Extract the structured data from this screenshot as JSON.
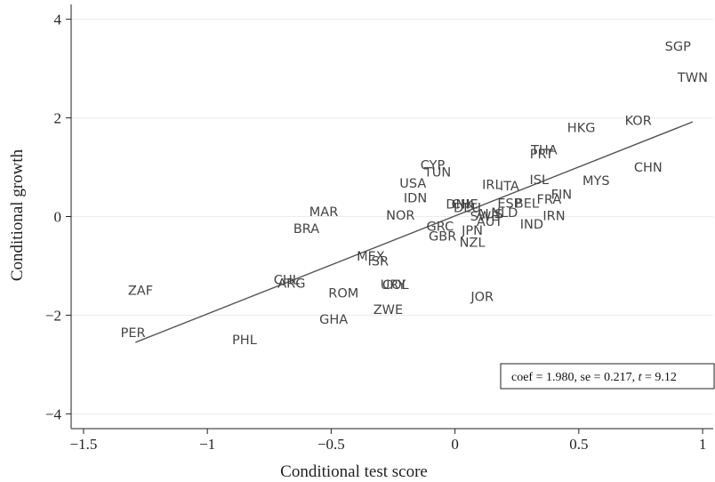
{
  "chart_data": {
    "type": "scatter",
    "title": "",
    "xlabel": "Conditional test score",
    "ylabel": "Conditional growth",
    "xlim": [
      -1.55,
      1.05
    ],
    "ylim": [
      -4.3,
      4.3
    ],
    "xticks": [
      -1.5,
      -1,
      -0.5,
      0,
      0.5,
      1
    ],
    "xtick_labels": [
      "−1.5",
      "−1",
      "−0.5",
      "0",
      "0.5",
      "1"
    ],
    "yticks": [
      -4,
      -2,
      0,
      2,
      4
    ],
    "ytick_labels": [
      "−4",
      "−2",
      "0",
      "2",
      "4"
    ],
    "grid": "horizontal",
    "marker": "country code labels",
    "points": [
      {
        "label": "SGP",
        "x": 0.9,
        "y": 3.45
      },
      {
        "label": "TWN",
        "x": 0.96,
        "y": 2.82
      },
      {
        "label": "KOR",
        "x": 0.74,
        "y": 1.95
      },
      {
        "label": "HKG",
        "x": 0.51,
        "y": 1.8
      },
      {
        "label": "CHN",
        "x": 0.78,
        "y": 1.0
      },
      {
        "label": "THA",
        "x": 0.36,
        "y": 1.35
      },
      {
        "label": "PRT",
        "x": 0.35,
        "y": 1.27
      },
      {
        "label": "MYS",
        "x": 0.57,
        "y": 0.73
      },
      {
        "label": "ISL",
        "x": 0.34,
        "y": 0.75
      },
      {
        "label": "IRL",
        "x": 0.15,
        "y": 0.65
      },
      {
        "label": "ITA",
        "x": 0.22,
        "y": 0.62
      },
      {
        "label": "FIN",
        "x": 0.43,
        "y": 0.45
      },
      {
        "label": "FRA",
        "x": 0.38,
        "y": 0.35
      },
      {
        "label": "ESP",
        "x": 0.22,
        "y": 0.27
      },
      {
        "label": "BEL",
        "x": 0.29,
        "y": 0.27
      },
      {
        "label": "CYP",
        "x": -0.09,
        "y": 1.05
      },
      {
        "label": "TUN",
        "x": -0.07,
        "y": 0.9
      },
      {
        "label": "USA",
        "x": -0.17,
        "y": 0.68
      },
      {
        "label": "IDN",
        "x": -0.16,
        "y": 0.38
      },
      {
        "label": "DNK",
        "x": 0.02,
        "y": 0.25
      },
      {
        "label": "CHE",
        "x": 0.04,
        "y": 0.25
      },
      {
        "label": "DEU",
        "x": 0.05,
        "y": 0.18
      },
      {
        "label": "NLD",
        "x": 0.2,
        "y": 0.08
      },
      {
        "label": "AUS",
        "x": 0.14,
        "y": 0.05
      },
      {
        "label": "SWE",
        "x": 0.12,
        "y": 0.01
      },
      {
        "label": "IRN",
        "x": 0.4,
        "y": 0.02
      },
      {
        "label": "AUT",
        "x": 0.14,
        "y": -0.1
      },
      {
        "label": "IND",
        "x": 0.31,
        "y": -0.15
      },
      {
        "label": "GRC",
        "x": -0.06,
        "y": -0.2
      },
      {
        "label": "JPN",
        "x": 0.07,
        "y": -0.28
      },
      {
        "label": "GBR",
        "x": -0.05,
        "y": -0.4
      },
      {
        "label": "NZL",
        "x": 0.07,
        "y": -0.52
      },
      {
        "label": "MAR",
        "x": -0.53,
        "y": 0.1
      },
      {
        "label": "NOR",
        "x": -0.22,
        "y": 0.03
      },
      {
        "label": "BRA",
        "x": -0.6,
        "y": -0.24
      },
      {
        "label": "MEX",
        "x": -0.34,
        "y": -0.8
      },
      {
        "label": "ISR",
        "x": -0.31,
        "y": -0.9
      },
      {
        "label": "CHL",
        "x": -0.68,
        "y": -1.28
      },
      {
        "label": "ARG",
        "x": -0.66,
        "y": -1.35
      },
      {
        "label": "URY",
        "x": -0.25,
        "y": -1.38
      },
      {
        "label": "COL",
        "x": -0.24,
        "y": -1.38
      },
      {
        "label": "ROM",
        "x": -0.45,
        "y": -1.55
      },
      {
        "label": "JOR",
        "x": 0.11,
        "y": -1.62
      },
      {
        "label": "ZWE",
        "x": -0.27,
        "y": -1.88
      },
      {
        "label": "GHA",
        "x": -0.49,
        "y": -2.08
      },
      {
        "label": "ZAF",
        "x": -1.27,
        "y": -1.5
      },
      {
        "label": "PER",
        "x": -1.3,
        "y": -2.35
      },
      {
        "label": "PHL",
        "x": -0.85,
        "y": -2.5
      }
    ],
    "fit_line": {
      "x": [
        -1.29,
        0.96
      ],
      "y": [
        -2.55,
        1.92
      ]
    },
    "annotation": {
      "coef": "1.980",
      "se": "0.217",
      "t": "9.12"
    }
  }
}
